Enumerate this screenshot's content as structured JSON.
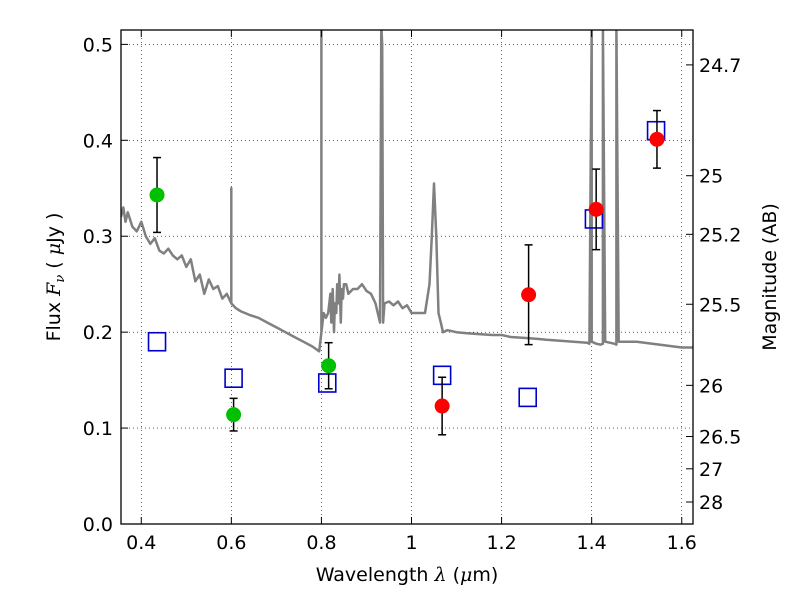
{
  "chart_data": {
    "type": "scatter",
    "xlabel": "Wavelength",
    "xlabel_math": "λ",
    "xlabel_unit_open": " (",
    "xlabel_unit_math": "μ",
    "xlabel_unit_close": "m)",
    "ylabel": "Flux",
    "ylabel_math_F": "F",
    "ylabel_math_nu": "ν",
    "ylabel_unit_open": " ( ",
    "ylabel_unit_math": "μ",
    "ylabel_unit_close": "Jy )",
    "y2label": "Magnitude (AB)",
    "xlim": [
      0.355,
      1.625
    ],
    "ylim": [
      0.0,
      0.515
    ],
    "grid": true,
    "x_ticks": [
      {
        "value": 0.4,
        "label": "0.4"
      },
      {
        "value": 0.6,
        "label": "0.6"
      },
      {
        "value": 0.8,
        "label": "0.8"
      },
      {
        "value": 1.0,
        "label": "1"
      },
      {
        "value": 1.2,
        "label": "1.2"
      },
      {
        "value": 1.4,
        "label": "1.4"
      },
      {
        "value": 1.6,
        "label": "1.6"
      }
    ],
    "y_ticks": [
      {
        "value": 0.0,
        "label": "0.0"
      },
      {
        "value": 0.1,
        "label": "0.1"
      },
      {
        "value": 0.2,
        "label": "0.2"
      },
      {
        "value": 0.3,
        "label": "0.3"
      },
      {
        "value": 0.4,
        "label": "0.4"
      },
      {
        "value": 0.5,
        "label": "0.5"
      }
    ],
    "y2_ticks": [
      {
        "value": 24.7,
        "label": "24.7"
      },
      {
        "value": 25.0,
        "label": "25"
      },
      {
        "value": 25.2,
        "label": "25.2"
      },
      {
        "value": 25.5,
        "label": "25.5"
      },
      {
        "value": 26.0,
        "label": "26"
      },
      {
        "value": 26.5,
        "label": "26.5"
      },
      {
        "value": 27.0,
        "label": "27"
      },
      {
        "value": 28.0,
        "label": "28"
      }
    ],
    "series": [
      {
        "kind": "sed_model_line",
        "color": "#808080",
        "x": [
          0.355,
          0.36,
          0.365,
          0.37,
          0.38,
          0.39,
          0.4,
          0.41,
          0.42,
          0.43,
          0.44,
          0.45,
          0.46,
          0.47,
          0.48,
          0.49,
          0.5,
          0.51,
          0.52,
          0.53,
          0.54,
          0.55,
          0.56,
          0.57,
          0.58,
          0.59,
          0.6,
          0.6,
          0.6,
          0.61,
          0.62,
          0.64,
          0.66,
          0.68,
          0.7,
          0.72,
          0.74,
          0.76,
          0.78,
          0.795,
          0.8,
          0.8,
          0.8,
          0.805,
          0.81,
          0.815,
          0.82,
          0.822,
          0.825,
          0.828,
          0.83,
          0.833,
          0.835,
          0.838,
          0.84,
          0.843,
          0.845,
          0.848,
          0.85,
          0.855,
          0.86,
          0.87,
          0.88,
          0.89,
          0.9,
          0.91,
          0.92,
          0.93,
          0.933,
          0.935,
          0.937,
          0.94,
          0.95,
          0.96,
          0.97,
          0.98,
          0.99,
          1.0,
          1.01,
          1.02,
          1.03,
          1.04,
          1.045,
          1.05,
          1.055,
          1.06,
          1.065,
          1.07,
          1.08,
          1.1,
          1.12,
          1.15,
          1.18,
          1.2,
          1.22,
          1.25,
          1.28,
          1.3,
          1.33,
          1.36,
          1.39,
          1.395,
          1.4,
          1.4,
          1.41,
          1.42,
          1.425,
          1.425,
          1.43,
          1.44,
          1.45,
          1.455,
          1.455,
          1.46,
          1.465,
          1.5,
          1.55,
          1.6,
          1.625
        ],
        "y": [
          0.32,
          0.33,
          0.315,
          0.325,
          0.31,
          0.305,
          0.315,
          0.3,
          0.292,
          0.298,
          0.285,
          0.282,
          0.287,
          0.28,
          0.276,
          0.28,
          0.268,
          0.276,
          0.253,
          0.26,
          0.24,
          0.255,
          0.245,
          0.248,
          0.235,
          0.24,
          0.23,
          0.35,
          0.23,
          0.225,
          0.222,
          0.218,
          0.215,
          0.21,
          0.205,
          0.2,
          0.195,
          0.19,
          0.185,
          0.18,
          0.2,
          0.52,
          0.2,
          0.22,
          0.215,
          0.22,
          0.24,
          0.21,
          0.245,
          0.2,
          0.23,
          0.22,
          0.25,
          0.23,
          0.26,
          0.21,
          0.245,
          0.235,
          0.25,
          0.25,
          0.24,
          0.245,
          0.245,
          0.25,
          0.243,
          0.24,
          0.23,
          0.21,
          0.52,
          0.5,
          0.21,
          0.23,
          0.232,
          0.228,
          0.232,
          0.225,
          0.228,
          0.22,
          0.22,
          0.22,
          0.22,
          0.25,
          0.3,
          0.355,
          0.3,
          0.22,
          0.21,
          0.2,
          0.202,
          0.2,
          0.199,
          0.198,
          0.197,
          0.197,
          0.195,
          0.194,
          0.193,
          0.192,
          0.191,
          0.19,
          0.189,
          0.188,
          0.52,
          0.19,
          0.188,
          0.187,
          0.188,
          0.52,
          0.19,
          0.189,
          0.188,
          0.187,
          0.52,
          0.19,
          0.19,
          0.19,
          0.187,
          0.184,
          0.184
        ]
      },
      {
        "kind": "model_photometry",
        "name": "",
        "color": "#0000cc",
        "marker": "square_open",
        "x": [
          0.435,
          0.605,
          0.813,
          1.068,
          1.258,
          1.405,
          1.543
        ],
        "y": [
          0.19,
          0.152,
          0.147,
          0.155,
          0.132,
          0.318,
          0.41
        ]
      },
      {
        "kind": "observed_green",
        "name": "",
        "color": "#00c000",
        "marker": "circle",
        "x": [
          0.435,
          0.605,
          0.816
        ],
        "y": [
          0.343,
          0.114,
          0.165
        ],
        "yerr": [
          0.039,
          0.017,
          0.024
        ]
      },
      {
        "kind": "observed_red",
        "name": "",
        "color": "#ff0000",
        "marker": "circle",
        "x": [
          1.068,
          1.26,
          1.41,
          1.545
        ],
        "y": [
          0.123,
          0.239,
          0.328,
          0.401
        ],
        "yerr": [
          0.03,
          0.052,
          0.042,
          0.03
        ]
      }
    ]
  }
}
